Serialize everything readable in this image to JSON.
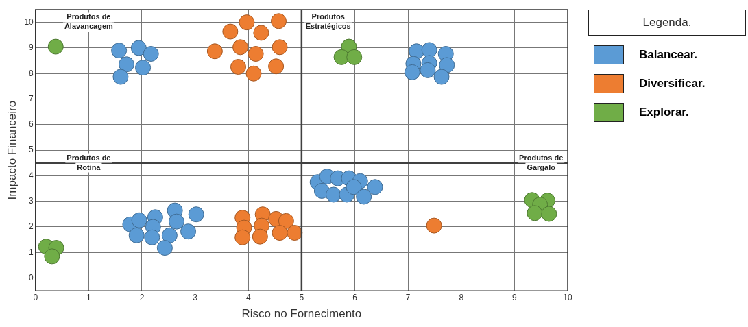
{
  "chart_data": {
    "type": "scatter",
    "xlabel": "Risco no Fornecimento",
    "ylabel": "Impacto Financeiro",
    "legend_title": "Legenda.",
    "legend": "right",
    "marker": "circle",
    "grid": true,
    "xlim": [
      0,
      10
    ],
    "xticks": [
      0,
      1,
      2,
      3,
      4,
      5,
      6,
      7,
      8,
      9,
      10
    ],
    "ylim": [
      -0.5,
      10.5
    ],
    "yticks": [
      0,
      1,
      2,
      3,
      4,
      5,
      6,
      7,
      8,
      9,
      10
    ],
    "ref_lines": [
      {
        "axis": "x",
        "value": 5,
        "color": "#404040"
      },
      {
        "axis": "y",
        "value": 4.5,
        "color": "#404040"
      }
    ],
    "annotations": [
      "Produtos de\nAlavancagem",
      "Produtos\nEstratégicos",
      "Produtos de\nRotina",
      "Produtos de\nGargalo"
    ],
    "series": [
      {
        "name": "Balancear.",
        "color": "#5b9bd5",
        "x": [
          1.57,
          1.94,
          2.17,
          1.71,
          2.02,
          1.6,
          7.16,
          7.4,
          7.71,
          7.1,
          7.4,
          7.73,
          7.08,
          7.37,
          7.63,
          1.78,
          1.95,
          2.25,
          2.62,
          3.02,
          2.21,
          2.65,
          1.9,
          2.19,
          2.52,
          2.87,
          2.43,
          5.3,
          5.48,
          5.68,
          5.89,
          6.1,
          6.38,
          5.38,
          5.6,
          5.85,
          5.98,
          6.17
        ],
        "values": [
          8.9,
          9.0,
          8.77,
          8.36,
          8.23,
          7.87,
          8.87,
          8.92,
          8.77,
          8.38,
          8.41,
          8.33,
          8.05,
          8.13,
          7.87,
          2.1,
          2.26,
          2.38,
          2.64,
          2.49,
          2.0,
          2.21,
          1.67,
          1.59,
          1.67,
          1.82,
          1.18,
          3.75,
          3.97,
          3.9,
          3.9,
          3.79,
          3.56,
          3.41,
          3.26,
          3.26,
          3.56,
          3.18
        ]
      },
      {
        "name": "Diversificar.",
        "color": "#ed7d31",
        "x": [
          3.97,
          4.57,
          3.66,
          4.24,
          3.37,
          3.85,
          4.14,
          4.59,
          3.81,
          4.1,
          4.52,
          3.89,
          4.27,
          4.52,
          4.71,
          3.92,
          4.25,
          3.89,
          4.22,
          4.59,
          4.87,
          7.49
        ],
        "values": [
          10.0,
          10.05,
          9.64,
          9.59,
          8.87,
          9.03,
          8.77,
          9.03,
          8.26,
          8.0,
          8.28,
          2.36,
          2.49,
          2.31,
          2.23,
          1.97,
          2.05,
          1.59,
          1.62,
          1.77,
          1.77,
          2.05
        ]
      },
      {
        "name": "Explorar.",
        "color": "#70ad47",
        "x": [
          0.38,
          5.89,
          5.75,
          5.99,
          0.2,
          0.39,
          0.31,
          9.33,
          9.62,
          9.48,
          9.38,
          9.65
        ],
        "values": [
          9.05,
          9.05,
          8.64,
          8.64,
          1.23,
          1.18,
          0.85,
          3.05,
          3.03,
          2.87,
          2.54,
          2.51
        ]
      }
    ]
  }
}
